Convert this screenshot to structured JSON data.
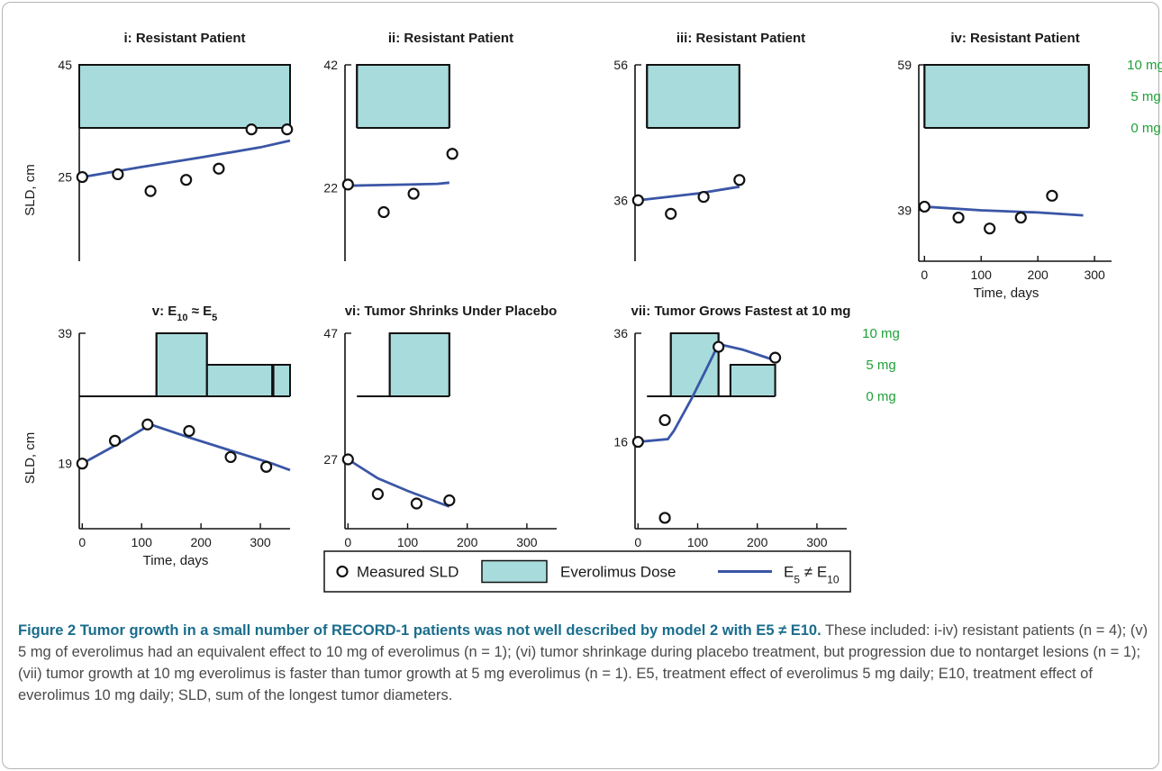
{
  "chart_data": [
    {
      "type": "scatter",
      "title": "i: Resistant Patient",
      "xlabel": "",
      "ylabel": "SLD, cm",
      "xlim": [
        -5,
        350
      ],
      "ylim": [
        10,
        45
      ],
      "yticks": [
        25,
        45
      ],
      "xticks": [],
      "dose_levels": [],
      "dose_schedule": [
        {
          "x0": -5,
          "x1": 350,
          "level": "10 mg"
        }
      ],
      "measured": {
        "x": [
          0,
          60,
          115,
          175,
          230,
          285,
          345
        ],
        "y": [
          25,
          25.5,
          22.5,
          24.5,
          26.5,
          33.5,
          33.5
        ]
      },
      "model": {
        "x": [
          0,
          100,
          200,
          300,
          350
        ],
        "y": [
          25,
          26.8,
          28.5,
          30.3,
          31.5
        ]
      }
    },
    {
      "type": "scatter",
      "title": "ii: Resistant Patient",
      "xlabel": "",
      "ylabel": "",
      "xlim": [
        -5,
        350
      ],
      "ylim": [
        10,
        42
      ],
      "yticks": [
        22,
        42
      ],
      "xticks": [],
      "dose_levels": [],
      "dose_schedule": [
        {
          "x0": 15,
          "x1": 170,
          "level": "10 mg"
        }
      ],
      "measured": {
        "x": [
          0,
          60,
          110,
          175
        ],
        "y": [
          22.5,
          18,
          21,
          27.5
        ]
      },
      "model": {
        "x": [
          0,
          50,
          100,
          150,
          170
        ],
        "y": [
          22.3,
          22.4,
          22.5,
          22.6,
          22.8
        ]
      }
    },
    {
      "type": "scatter",
      "title": "iii: Resistant Patient",
      "xlabel": "",
      "ylabel": "",
      "xlim": [
        -5,
        350
      ],
      "ylim": [
        27,
        56
      ],
      "yticks": [
        36,
        56
      ],
      "xticks": [],
      "dose_levels": [],
      "dose_schedule": [
        {
          "x0": 15,
          "x1": 170,
          "level": "10 mg"
        }
      ],
      "measured": {
        "x": [
          0,
          55,
          110,
          170
        ],
        "y": [
          36,
          34,
          36.5,
          39
        ]
      },
      "model": {
        "x": [
          0,
          50,
          100,
          170
        ],
        "y": [
          36,
          36.5,
          37,
          38
        ]
      }
    },
    {
      "type": "scatter",
      "title": "iv: Resistant Patient",
      "xlabel": "Time, days",
      "ylabel": "",
      "xlim": [
        -10,
        330
      ],
      "ylim": [
        32,
        59
      ],
      "yticks": [
        39,
        59
      ],
      "xticks": [
        0,
        100,
        200,
        300
      ],
      "dose_levels": [
        "10 mg",
        "5 mg",
        "0 mg"
      ],
      "dose_schedule": [
        {
          "x0": 0,
          "x1": 290,
          "level": "10 mg"
        }
      ],
      "measured": {
        "x": [
          0,
          60,
          115,
          170,
          225
        ],
        "y": [
          39.5,
          38,
          36.5,
          38,
          41
        ]
      },
      "model": {
        "x": [
          0,
          100,
          200,
          280
        ],
        "y": [
          39.5,
          39,
          38.7,
          38.3
        ]
      }
    },
    {
      "type": "scatter",
      "title": "v: E10 ≈ E5",
      "xlabel": "Time, days",
      "ylabel": "SLD, cm",
      "xlim": [
        -5,
        350
      ],
      "ylim": [
        9,
        39
      ],
      "yticks": [
        19,
        39
      ],
      "xticks": [
        0,
        100,
        200,
        300
      ],
      "dose_levels": [],
      "dose_schedule": [
        {
          "x0": -5,
          "x1": 125,
          "level": "0 mg"
        },
        {
          "x0": 125,
          "x1": 210,
          "level": "10 mg"
        },
        {
          "x0": 210,
          "x1": 320,
          "level": "5 mg"
        },
        {
          "x0": 320,
          "x1": 322,
          "level": "0 mg"
        },
        {
          "x0": 322,
          "x1": 350,
          "level": "5 mg"
        }
      ],
      "measured": {
        "x": [
          0,
          55,
          110,
          180,
          250,
          310
        ],
        "y": [
          19,
          22.5,
          25,
          24,
          20,
          18.5
        ]
      },
      "model": {
        "x": [
          0,
          60,
          115,
          180,
          250,
          320,
          350
        ],
        "y": [
          19,
          22,
          25,
          23,
          21,
          19,
          18
        ]
      }
    },
    {
      "type": "scatter",
      "title": "vi: Tumor Shrinks Under Placebo",
      "xlabel": "Time, days",
      "ylabel": "",
      "xlim": [
        -5,
        350
      ],
      "ylim": [
        16,
        47
      ],
      "yticks": [
        27,
        47
      ],
      "xticks": [
        0,
        100,
        200,
        300
      ],
      "dose_levels": [],
      "dose_schedule": [
        {
          "x0": 15,
          "x1": 70,
          "level": "0 mg"
        },
        {
          "x0": 70,
          "x1": 170,
          "level": "10 mg"
        }
      ],
      "measured": {
        "x": [
          0,
          50,
          115,
          170
        ],
        "y": [
          27,
          21.5,
          20,
          20.5
        ]
      },
      "model": {
        "x": [
          0,
          50,
          100,
          170
        ],
        "y": [
          27,
          24,
          22,
          19.5
        ]
      }
    },
    {
      "type": "scatter",
      "title": "vii: Tumor Grows Fastest at 10 mg",
      "xlabel": "Time, days",
      "ylabel": "",
      "xlim": [
        -5,
        350
      ],
      "ylim": [
        0,
        36
      ],
      "yticks": [
        16,
        36
      ],
      "xticks": [
        0,
        100,
        200,
        300
      ],
      "dose_levels": [
        "10 mg",
        "5 mg",
        "0 mg"
      ],
      "dose_schedule": [
        {
          "x0": 15,
          "x1": 55,
          "level": "0 mg"
        },
        {
          "x0": 55,
          "x1": 135,
          "level": "10 mg"
        },
        {
          "x0": 135,
          "x1": 155,
          "level": "0 mg"
        },
        {
          "x0": 155,
          "x1": 230,
          "level": "5 mg"
        }
      ],
      "measured": {
        "x": [
          0,
          45,
          45,
          135,
          230
        ],
        "y": [
          16,
          20,
          2,
          33.5,
          31.5
        ]
      },
      "model": {
        "x": [
          0,
          50,
          60,
          90,
          115,
          135,
          175,
          230
        ],
        "y": [
          16,
          16.5,
          18,
          24,
          29.5,
          34,
          33,
          31
        ]
      }
    }
  ],
  "legend": {
    "measured_label": "Measured SLD",
    "dose_label": "Everolimus Dose",
    "model_label": "E5 ≠ E10"
  },
  "caption": {
    "title": "Figure 2 Tumor growth in a small number of RECORD-1 patients was not well described by model 2 with E5 ≠ E10.",
    "body": "These included: i-iv) resistant patients (n = 4); (v) 5 mg of everolimus had an equivalent effect to 10 mg of everolimus (n = 1); (vi) tumor shrinkage during placebo treatment, but progression due to nontarget lesions (n = 1); (vii) tumor growth at 10 mg everolimus is faster than tumor growth at 5 mg everolimus (n = 1). E5, treatment effect of everolimus 5 mg daily; E10, treatment effect of everolimus 10 mg daily; SLD, sum of the longest tumor diameters."
  },
  "colors": {
    "dose_fill": "#a8dcdc",
    "model_line": "#3a56a6",
    "dose_label": "#1fa038",
    "caption_title": "#1a6d8c"
  }
}
